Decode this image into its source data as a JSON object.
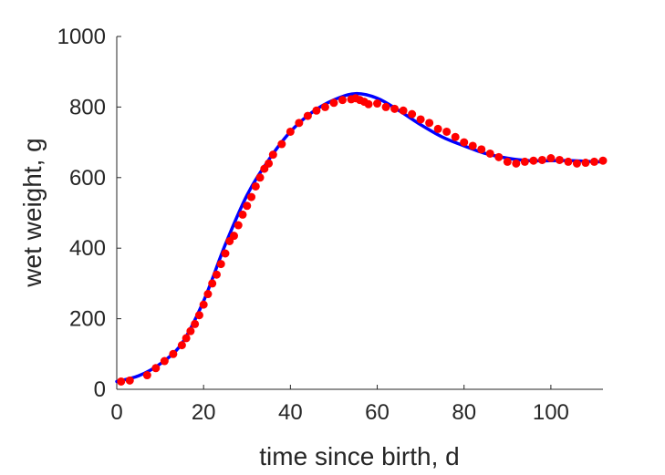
{
  "chart_data": {
    "type": "line",
    "title": "",
    "xlabel": "time since birth, d",
    "ylabel": "wet weight, g",
    "xlim": [
      0,
      112
    ],
    "ylim": [
      0,
      1000
    ],
    "xticks": [
      0,
      20,
      40,
      60,
      80,
      100
    ],
    "yticks": [
      0,
      200,
      400,
      600,
      800,
      1000
    ],
    "grid": false,
    "legend": "none",
    "colors": {
      "axis": "#262626",
      "model": "#0000ff",
      "observed": "#ff0000",
      "background": "#ffffff"
    },
    "series": [
      {
        "kind": "line",
        "x": [
          0,
          5,
          10,
          15,
          20,
          25,
          30,
          35,
          40,
          45,
          50,
          55,
          60,
          65,
          70,
          75,
          80,
          85,
          90,
          95,
          100,
          105,
          110,
          112
        ],
        "y": [
          22,
          38,
          72,
          130,
          250,
          410,
          550,
          650,
          730,
          785,
          820,
          838,
          825,
          790,
          750,
          715,
          690,
          668,
          655,
          648,
          648,
          648,
          645,
          645
        ]
      },
      {
        "kind": "scatter",
        "x": [
          1,
          3,
          7,
          9,
          11,
          13,
          15,
          16,
          17,
          18,
          19,
          20,
          21,
          22,
          23,
          24,
          25,
          26,
          27,
          28,
          29,
          30,
          31,
          32,
          33,
          34,
          35,
          36,
          38,
          40,
          42,
          44,
          46,
          48,
          50,
          52,
          54,
          55,
          56,
          57,
          58,
          60,
          62,
          64,
          66,
          68,
          70,
          72,
          74,
          76,
          78,
          80,
          82,
          84,
          86,
          88,
          90,
          92,
          94,
          96,
          98,
          100,
          102,
          104,
          106,
          108,
          110,
          112
        ],
        "y": [
          22,
          25,
          40,
          60,
          80,
          100,
          125,
          145,
          165,
          185,
          210,
          240,
          270,
          300,
          325,
          355,
          385,
          420,
          435,
          465,
          495,
          520,
          545,
          575,
          600,
          625,
          640,
          665,
          695,
          730,
          755,
          775,
          790,
          800,
          812,
          820,
          822,
          825,
          820,
          815,
          808,
          810,
          800,
          795,
          790,
          780,
          765,
          755,
          738,
          730,
          715,
          700,
          690,
          680,
          668,
          658,
          645,
          640,
          645,
          648,
          650,
          655,
          650,
          645,
          640,
          642,
          645,
          648
        ]
      }
    ]
  }
}
